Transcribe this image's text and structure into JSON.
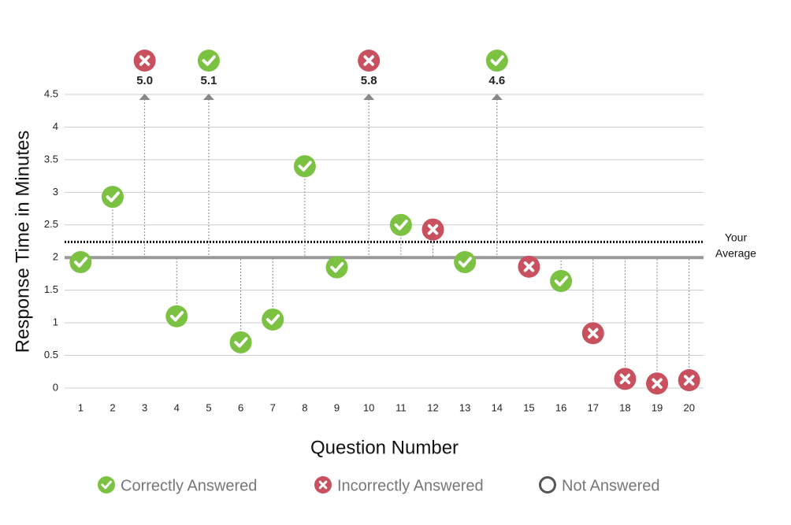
{
  "chart_data": {
    "type": "scatter",
    "y_label": "Response Time in Minutes",
    "x_label": "Question Number",
    "x": [
      1,
      2,
      3,
      4,
      5,
      6,
      7,
      8,
      9,
      10,
      11,
      12,
      13,
      14,
      15,
      16,
      17,
      18,
      19,
      20
    ],
    "xlim": [
      0.5,
      20.45
    ],
    "series": [
      {
        "name": "Correctly Answered",
        "color": "#7cc242",
        "marker": "check",
        "values": [
          1.93,
          2.93,
          null,
          1.1,
          5.1,
          0.7,
          1.05,
          3.4,
          1.85,
          null,
          2.5,
          null,
          1.93,
          4.6,
          null,
          1.64,
          null,
          null,
          null,
          null
        ],
        "value_labels": [
          null,
          null,
          null,
          null,
          "5.1",
          null,
          null,
          null,
          null,
          null,
          null,
          null,
          null,
          "4.6",
          null,
          null,
          null,
          null,
          null,
          null
        ]
      },
      {
        "name": "Incorrectly Answered",
        "color": "#c9505e",
        "marker": "cross",
        "values": [
          null,
          null,
          5.0,
          null,
          null,
          null,
          null,
          null,
          null,
          5.8,
          null,
          2.43,
          null,
          null,
          1.86,
          null,
          0.84,
          0.14,
          0.07,
          0.12
        ],
        "value_labels": [
          null,
          null,
          "5.0",
          null,
          null,
          null,
          null,
          null,
          null,
          "5.8",
          null,
          null,
          null,
          null,
          null,
          null,
          null,
          null,
          null,
          null
        ]
      },
      {
        "name": "Not Answered",
        "color": "#555555",
        "marker": "ring",
        "values": [
          null,
          null,
          null,
          null,
          null,
          null,
          null,
          null,
          null,
          null,
          null,
          null,
          null,
          null,
          null,
          null,
          null,
          null,
          null,
          null
        ]
      }
    ],
    "ylim": [
      0,
      4.5
    ],
    "yticks": [
      0,
      0.5,
      1,
      1.5,
      2,
      2.5,
      3,
      3.5,
      4,
      4.5
    ],
    "grid": true,
    "reference_line": 2,
    "average": {
      "value": 2.24,
      "label_lines": [
        "Your",
        "Average"
      ]
    }
  }
}
